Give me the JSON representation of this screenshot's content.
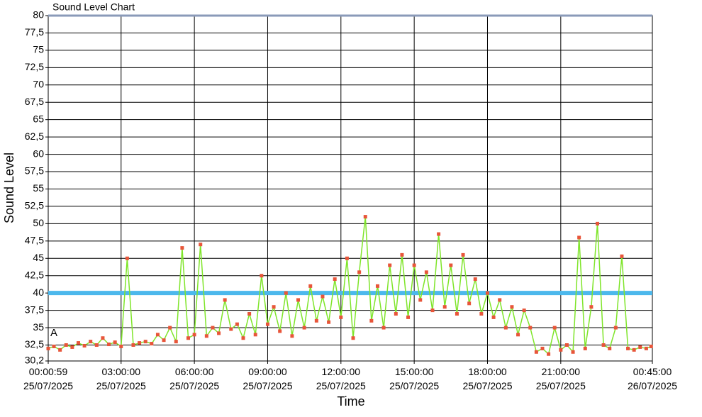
{
  "chart_data": {
    "type": "line",
    "title": "Sound Level Chart",
    "x_label": "Time",
    "y_label": "Sound Level",
    "annotation": "A",
    "x": [
      0.0164,
      0.25,
      0.5,
      0.75,
      1,
      1.25,
      1.5,
      1.75,
      2,
      2.25,
      2.5,
      2.75,
      3,
      3.25,
      3.5,
      3.75,
      4,
      4.25,
      4.5,
      4.75,
      5,
      5.25,
      5.5,
      5.75,
      6,
      6.25,
      6.5,
      6.75,
      7,
      7.25,
      7.5,
      7.75,
      8,
      8.25,
      8.5,
      8.75,
      9,
      9.25,
      9.5,
      9.75,
      10,
      10.25,
      10.5,
      10.75,
      11,
      11.25,
      11.5,
      11.75,
      12,
      12.25,
      12.5,
      12.75,
      13,
      13.25,
      13.5,
      13.75,
      14,
      14.25,
      14.5,
      14.75,
      15,
      15.25,
      15.5,
      15.75,
      16,
      16.25,
      16.5,
      16.75,
      17,
      17.25,
      17.5,
      17.75,
      18,
      18.25,
      18.5,
      18.75,
      19,
      19.25,
      19.5,
      19.75,
      20,
      20.25,
      20.5,
      20.75,
      21,
      21.25,
      21.5,
      21.75,
      22,
      22.25,
      22.5,
      22.75,
      23,
      23.25,
      23.5,
      23.75,
      24,
      24.25,
      24.5,
      24.7
    ],
    "series": [
      {
        "color": "#7fe52a",
        "marker_color": "#e8553a",
        "values": [
          32,
          32.3,
          31.8,
          32.5,
          32.2,
          32.8,
          32.4,
          33,
          32.5,
          33.5,
          32.6,
          32.9,
          32.3,
          45,
          32.5,
          32.8,
          33,
          32.7,
          34,
          33.2,
          35,
          33,
          46.5,
          33.5,
          34,
          47,
          33.8,
          35,
          34.2,
          39,
          34.8,
          35.5,
          33.5,
          37,
          34,
          42.5,
          35.5,
          38,
          34.5,
          40,
          33.8,
          39,
          35,
          41,
          36,
          39.5,
          35.8,
          42,
          36.5,
          45,
          33.5,
          43,
          51,
          36,
          41,
          35,
          44,
          37,
          45.5,
          36.5,
          44,
          39,
          43,
          37.5,
          48.5,
          38,
          44,
          37,
          45.5,
          38.5,
          42,
          37,
          40,
          36.5,
          39,
          35,
          38,
          34,
          37.5,
          35,
          31.5,
          32,
          31.2,
          35,
          31.8,
          32.5,
          31.5,
          48,
          32,
          38,
          50,
          32.5,
          32,
          35,
          45.3,
          32,
          31.8,
          32.2,
          32,
          32.3
        ]
      }
    ],
    "reference_lines": [
      {
        "value": 40,
        "color": "#4cb8ec"
      },
      {
        "value": 80,
        "color": "#8a9ab8"
      }
    ],
    "xlim": [
      0.0164,
      24.75
    ],
    "xticks": [
      {
        "value": 0.0164,
        "label": "00:00:59 25/07/2025"
      },
      {
        "value": 3,
        "label": "03:00:00 25/07/2025"
      },
      {
        "value": 6,
        "label": "06:00:00 25/07/2025"
      },
      {
        "value": 9,
        "label": "09:00:00 25/07/2025"
      },
      {
        "value": 12,
        "label": "12:00:00 25/07/2025"
      },
      {
        "value": 15,
        "label": "15:00:00 25/07/2025"
      },
      {
        "value": 18,
        "label": "18:00:00 25/07/2025"
      },
      {
        "value": 21,
        "label": "21:00:00 25/07/2025"
      },
      {
        "value": 24.75,
        "label": "00:45:00 26/07/2025"
      }
    ],
    "ylim": [
      30.2,
      80
    ],
    "yticks": [
      {
        "value": 30.2,
        "label": "30,2"
      },
      {
        "value": 32.5,
        "label": "32,5"
      },
      35,
      {
        "value": 37.5,
        "label": "37,5"
      },
      40,
      {
        "value": 42.5,
        "label": "42,5"
      },
      45,
      {
        "value": 47.5,
        "label": "47,5"
      },
      50,
      {
        "value": 52.5,
        "label": "52,5"
      },
      55,
      {
        "value": 57.5,
        "label": "57,5"
      },
      60,
      {
        "value": 62.5,
        "label": "62,5"
      },
      65,
      {
        "value": 67.5,
        "label": "67,5"
      },
      70,
      {
        "value": 72.5,
        "label": "72,5"
      },
      75,
      {
        "value": 77.5,
        "label": "77,5"
      },
      80
    ],
    "grid": true
  }
}
